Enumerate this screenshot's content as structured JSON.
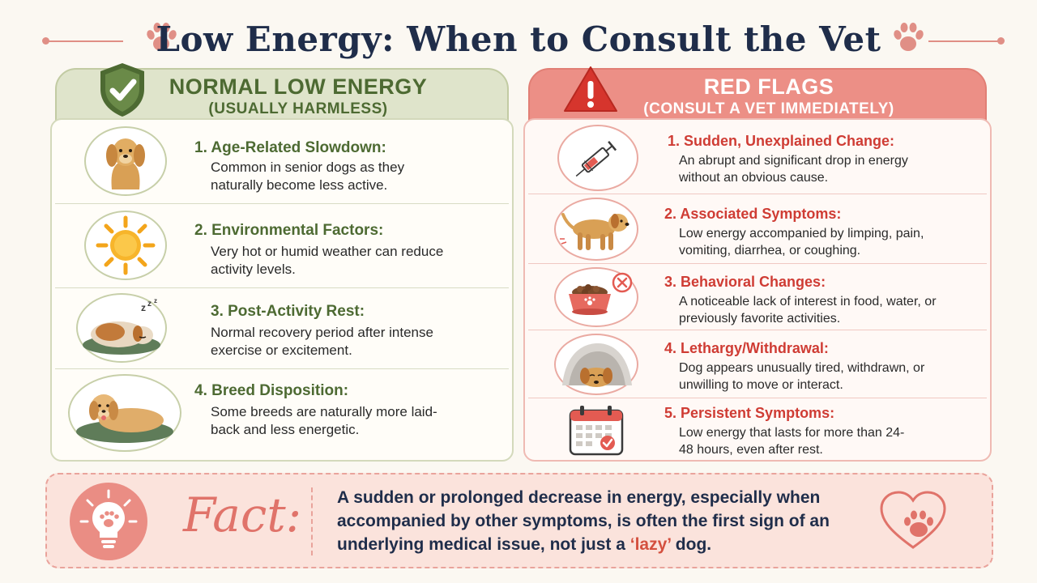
{
  "title": "Low Energy: When to Consult the Vet",
  "normal": {
    "heading": "NORMAL LOW ENERGY",
    "subheading": "(USUALLY HARMLESS)",
    "items": [
      {
        "title": "1. Age-Related Slowdown:",
        "desc": "Common in senior dogs as they naturally become less active.",
        "icon": "senior-dog-icon"
      },
      {
        "title": "2. Environmental Factors:",
        "desc": "Very hot or humid weather can reduce activity levels.",
        "icon": "sun-icon"
      },
      {
        "title": "3. Post-Activity Rest:",
        "desc": "Normal recovery period after intense exercise or excitement.",
        "icon": "sleeping-dog-icon"
      },
      {
        "title": "4. Breed Disposition:",
        "desc": "Some breeds are naturally more laid-back and less energetic.",
        "icon": "relaxed-dog-icon"
      }
    ]
  },
  "red_flags": {
    "heading": "RED FLAGS",
    "subheading": "(CONSULT A VET IMMEDIATELY)",
    "items": [
      {
        "title": "1. Sudden, Unexplained Change:",
        "desc": "An abrupt and significant drop in energy without an obvious cause.",
        "icon": "syringe-icon"
      },
      {
        "title": "2. Associated Symptoms:",
        "desc": "Low energy accompanied by limping, pain, vomiting, diarrhea, or coughing.",
        "icon": "sick-dog-icon"
      },
      {
        "title": "3. Behavioral Changes:",
        "desc": "A noticeable lack of interest in food, water, or previously favorite activities.",
        "icon": "food-bowl-icon"
      },
      {
        "title": "4. Lethargy/Withdrawal:",
        "desc": "Dog appears unusually tired, withdrawn, or unwilling to move or interact.",
        "icon": "hiding-dog-icon"
      },
      {
        "title": "5. Persistent Symptoms:",
        "desc": "Low energy that lasts for more than 24-48 hours, even after rest.",
        "icon": "calendar-icon"
      }
    ]
  },
  "fact": {
    "label": "Fact:",
    "text_before": "A sudden or prolonged decrease in energy, especially when accompanied by other symptoms, is often the first sign of an underlying medical issue, not just a ",
    "highlight": "‘lazy’",
    "text_after": " dog."
  },
  "colors": {
    "title": "#1f2d4a",
    "normal_accent": "#4d6a32",
    "red_accent": "#cf3c34",
    "red_header": "#ec8f86",
    "fact_bg": "#fbe3dc"
  }
}
